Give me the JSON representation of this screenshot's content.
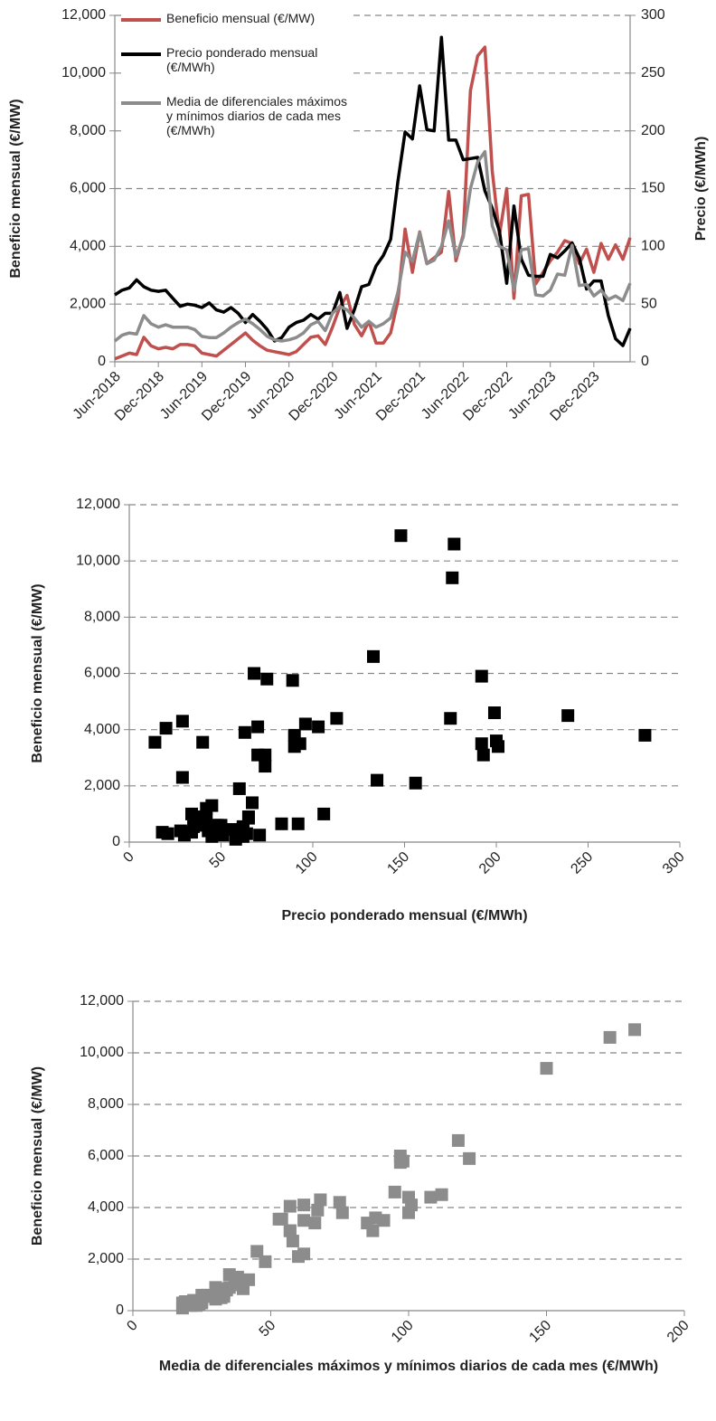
{
  "chart_data": [
    {
      "type": "line",
      "y_label": "Beneficio mensual (€/MW)",
      "y2_label": "Precio (€/MWh)",
      "categories": [
        "Jun-2018",
        null,
        null,
        null,
        null,
        null,
        "Dec-2018",
        null,
        null,
        null,
        null,
        null,
        "Jun-2019",
        null,
        null,
        null,
        null,
        null,
        "Dec-2019",
        null,
        null,
        null,
        null,
        null,
        "Jun-2020",
        null,
        null,
        null,
        null,
        null,
        "Dec-2020",
        null,
        null,
        null,
        null,
        null,
        "Jun-2021",
        null,
        null,
        null,
        null,
        null,
        "Dec-2021",
        null,
        null,
        null,
        null,
        null,
        "Jun-2022",
        null,
        null,
        null,
        null,
        null,
        "Dec-2022",
        null,
        null,
        null,
        null,
        null,
        "Jun-2023",
        null,
        null,
        null,
        null,
        null,
        "Dec-2023",
        null,
        null,
        null,
        null,
        null
      ],
      "series": [
        {
          "name": "Beneficio mensual (€/MW)",
          "color": "#c0504d",
          "axis": "y",
          "values": [
            100,
            200,
            300,
            250,
            850,
            550,
            450,
            500,
            450,
            600,
            600,
            550,
            300,
            250,
            200,
            400,
            600,
            800,
            1000,
            750,
            550,
            400,
            350,
            300,
            250,
            350,
            600,
            850,
            900,
            600,
            1200,
            1900,
            2300,
            1300,
            900,
            1400,
            650,
            650,
            1000,
            2100,
            4600,
            3100,
            4500,
            3400,
            3600,
            3800,
            5900,
            3500,
            4400,
            9400,
            10600,
            10900,
            6600,
            4400,
            6000,
            2200,
            5750,
            5800,
            2700,
            3100,
            3500,
            3800,
            4200,
            4100,
            3400,
            3900,
            3100,
            4100,
            3550,
            4050,
            3550,
            4300
          ]
        },
        {
          "name": "Precio ponderado mensual (€/MWh)",
          "color": "#000000",
          "axis": "y2",
          "values": [
            58,
            62,
            64,
            71,
            65,
            62,
            61,
            62,
            55,
            48,
            50,
            49,
            47,
            51,
            45,
            43,
            47,
            42,
            34,
            41,
            35,
            28,
            18,
            21,
            30,
            34,
            36,
            41,
            37,
            42,
            42,
            60,
            29,
            45,
            65,
            67,
            83,
            92,
            106,
            156,
            199,
            193,
            239,
            201,
            200,
            281,
            192,
            192,
            175,
            176,
            177,
            148,
            133,
            113,
            68,
            135,
            89,
            75,
            74,
            74,
            93,
            90,
            96,
            103,
            90,
            63,
            70,
            70,
            40,
            20,
            14,
            29
          ]
        },
        {
          "name": "Media de diferenciales máximos y mínimos diarios de cada mes (€/MWh)",
          "color": "#8c8c8c",
          "axis": "y2",
          "values": [
            18,
            23,
            25,
            24,
            40,
            33,
            30,
            32,
            30,
            30,
            30,
            28,
            22,
            21,
            21,
            25,
            30,
            34,
            37,
            33,
            28,
            22,
            19,
            18,
            19,
            21,
            25,
            32,
            35,
            27,
            42,
            48,
            45,
            38,
            30,
            35,
            30,
            33,
            38,
            60,
            95,
            87,
            112,
            85,
            88,
            100,
            122,
            91,
            108,
            150,
            173,
            182,
            118,
            100,
            97,
            62,
            97,
            98,
            58,
            57,
            62,
            76,
            75,
            101,
            66,
            67,
            57,
            62,
            54,
            57,
            53,
            68
          ]
        }
      ],
      "ylim": [
        0,
        12000
      ],
      "yticks": [
        0,
        {
          "value": 2000,
          "label": "2,000"
        },
        {
          "value": 4000,
          "label": "4,000"
        },
        {
          "value": 6000,
          "label": "6,000"
        },
        {
          "value": 8000,
          "label": "8,000"
        },
        {
          "value": 10000,
          "label": "10,000"
        },
        {
          "value": 12000,
          "label": "12,000"
        }
      ],
      "y2lim": [
        0,
        300
      ],
      "y2ticks": [
        0,
        50,
        100,
        150,
        200,
        250,
        300
      ],
      "grid": true
    },
    {
      "type": "scatter",
      "x_label": "Precio ponderado mensual (€/MWh)",
      "y_label": "Beneficio mensual (€/MW)",
      "color": "#000000",
      "x": [
        58,
        62,
        64,
        71,
        65,
        62,
        61,
        62,
        55,
        48,
        50,
        49,
        47,
        51,
        45,
        43,
        47,
        42,
        34,
        41,
        35,
        28,
        18,
        21,
        30,
        34,
        36,
        41,
        37,
        42,
        42,
        60,
        29,
        45,
        65,
        67,
        83,
        92,
        106,
        156,
        199,
        193,
        239,
        201,
        200,
        281,
        192,
        192,
        175,
        176,
        177,
        148,
        133,
        113,
        68,
        135,
        89,
        75,
        74,
        74,
        93,
        90,
        96,
        103,
        90,
        63,
        70,
        70,
        40,
        20,
        14,
        29
      ],
      "values": [
        100,
        200,
        300,
        250,
        850,
        550,
        450,
        500,
        450,
        600,
        600,
        550,
        300,
        250,
        200,
        400,
        600,
        800,
        1000,
        750,
        550,
        400,
        350,
        300,
        250,
        350,
        600,
        850,
        900,
        600,
        1200,
        1900,
        2300,
        1300,
        900,
        1400,
        650,
        650,
        1000,
        2100,
        4600,
        3100,
        4500,
        3400,
        3600,
        3800,
        5900,
        3500,
        4400,
        9400,
        10600,
        10900,
        6600,
        4400,
        6000,
        2200,
        5750,
        5800,
        2700,
        3100,
        3500,
        3800,
        4200,
        4100,
        3400,
        3900,
        3100,
        4100,
        3550,
        4050,
        3550,
        4300
      ],
      "xlim": [
        0,
        300
      ],
      "xticks": [
        0,
        50,
        100,
        150,
        200,
        250,
        300
      ],
      "ylim": [
        0,
        12000
      ],
      "yticks": [
        0,
        {
          "value": 2000,
          "label": "2,000"
        },
        {
          "value": 4000,
          "label": "4,000"
        },
        {
          "value": 6000,
          "label": "6,000"
        },
        {
          "value": 8000,
          "label": "8,000"
        },
        {
          "value": 10000,
          "label": "10,000"
        },
        {
          "value": 12000,
          "label": "12,000"
        }
      ],
      "grid": true
    },
    {
      "type": "scatter",
      "x_label": "Media de diferenciales máximos y mínimos diarios de cada mes (€/MWh)",
      "y_label": "Beneficio mensual (€/MW)",
      "color": "#8c8c8c",
      "x": [
        18,
        23,
        25,
        24,
        40,
        33,
        30,
        32,
        30,
        30,
        30,
        28,
        22,
        21,
        21,
        25,
        30,
        34,
        37,
        33,
        28,
        22,
        19,
        18,
        19,
        21,
        25,
        32,
        35,
        27,
        42,
        48,
        45,
        38,
        30,
        35,
        30,
        33,
        38,
        60,
        95,
        87,
        112,
        85,
        88,
        100,
        122,
        91,
        108,
        150,
        173,
        182,
        118,
        100,
        97,
        62,
        97,
        98,
        58,
        57,
        62,
        76,
        75,
        101,
        66,
        67,
        57,
        62,
        54,
        57,
        53,
        68
      ],
      "values": [
        100,
        200,
        300,
        250,
        850,
        550,
        450,
        500,
        450,
        600,
        600,
        550,
        300,
        250,
        200,
        400,
        600,
        800,
        1000,
        750,
        550,
        400,
        350,
        300,
        250,
        350,
        600,
        850,
        900,
        600,
        1200,
        1900,
        2300,
        1300,
        900,
        1400,
        650,
        650,
        1000,
        2100,
        4600,
        3100,
        4500,
        3400,
        3600,
        3800,
        5900,
        3500,
        4400,
        9400,
        10600,
        10900,
        6600,
        4400,
        6000,
        2200,
        5750,
        5800,
        2700,
        3100,
        3500,
        3800,
        4200,
        4100,
        3400,
        3900,
        3100,
        4100,
        3550,
        4050,
        3550,
        4300
      ],
      "xlim": [
        0,
        200
      ],
      "xticks": [
        0,
        50,
        100,
        150,
        200
      ],
      "ylim": [
        0,
        12000
      ],
      "yticks": [
        0,
        {
          "value": 2000,
          "label": "2,000"
        },
        {
          "value": 4000,
          "label": "4,000"
        },
        {
          "value": 6000,
          "label": "6,000"
        },
        {
          "value": 8000,
          "label": "8,000"
        },
        {
          "value": 10000,
          "label": "10,000"
        },
        {
          "value": 12000,
          "label": "12,000"
        }
      ],
      "grid": true
    }
  ]
}
